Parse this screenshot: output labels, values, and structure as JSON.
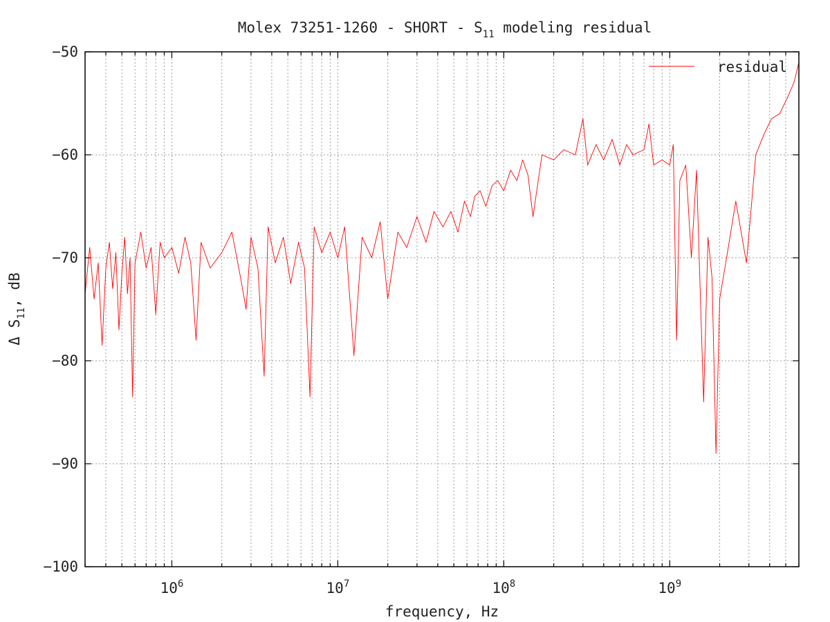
{
  "chart_data": {
    "type": "line",
    "title": "Molex 73251-1260 - SHORT - S11 modeling residual",
    "title_parts": {
      "prefix": "Molex 73251-1260 - SHORT - S",
      "subscript": "11",
      "suffix": " modeling residual"
    },
    "xlabel": "frequency, Hz",
    "ylabel": "Δ S11, dB",
    "ylabel_parts": {
      "prefix": "Δ S",
      "subscript": "11",
      "suffix": ", dB"
    },
    "x_scale": "log",
    "xlim": [
      300000,
      6000000000
    ],
    "ylim": [
      -100,
      -50
    ],
    "x_ticks": [
      {
        "value": 1000000,
        "base": "10",
        "exp": "6"
      },
      {
        "value": 10000000,
        "base": "10",
        "exp": "7"
      },
      {
        "value": 100000000,
        "base": "10",
        "exp": "8"
      },
      {
        "value": 1000000000,
        "base": "10",
        "exp": "9"
      }
    ],
    "y_ticks": [
      {
        "value": -50,
        "label": "−50"
      },
      {
        "value": -60,
        "label": "−60"
      },
      {
        "value": -70,
        "label": "−70"
      },
      {
        "value": -80,
        "label": "−80"
      },
      {
        "value": -90,
        "label": "−90"
      },
      {
        "value": -100,
        "label": "−100"
      }
    ],
    "grid": true,
    "legend": {
      "position": "top-right",
      "entries": [
        "residual"
      ]
    },
    "series": [
      {
        "name": "residual",
        "color": "#ff0000",
        "points": [
          [
            300000,
            -73.5
          ],
          [
            320000,
            -69
          ],
          [
            340000,
            -74
          ],
          [
            360000,
            -70.5
          ],
          [
            380000,
            -78.5
          ],
          [
            400000,
            -71
          ],
          [
            420000,
            -68.5
          ],
          [
            440000,
            -73
          ],
          [
            460000,
            -69.5
          ],
          [
            480000,
            -77
          ],
          [
            500000,
            -71.5
          ],
          [
            520000,
            -68
          ],
          [
            540000,
            -73.5
          ],
          [
            560000,
            -70
          ],
          [
            580000,
            -83.5
          ],
          [
            600000,
            -70.5
          ],
          [
            650000,
            -67.5
          ],
          [
            700000,
            -71
          ],
          [
            750000,
            -69
          ],
          [
            800000,
            -75.5
          ],
          [
            850000,
            -68.5
          ],
          [
            900000,
            -70
          ],
          [
            1000000,
            -69
          ],
          [
            1100000,
            -71.5
          ],
          [
            1200000,
            -68
          ],
          [
            1300000,
            -70.5
          ],
          [
            1400000,
            -78
          ],
          [
            1500000,
            -68.5
          ],
          [
            1700000,
            -71
          ],
          [
            2000000,
            -69.5
          ],
          [
            2300000,
            -67.5
          ],
          [
            2600000,
            -72
          ],
          [
            2800000,
            -75
          ],
          [
            3000000,
            -68
          ],
          [
            3300000,
            -71
          ],
          [
            3600000,
            -81.5
          ],
          [
            3800000,
            -67
          ],
          [
            4200000,
            -70.5
          ],
          [
            4700000,
            -68
          ],
          [
            5200000,
            -72.5
          ],
          [
            5800000,
            -68.5
          ],
          [
            6300000,
            -71
          ],
          [
            6800000,
            -83.5
          ],
          [
            7200000,
            -67
          ],
          [
            8000000,
            -69.5
          ],
          [
            9000000,
            -67.5
          ],
          [
            10000000,
            -70
          ],
          [
            11000000,
            -67
          ],
          [
            12500000,
            -79.5
          ],
          [
            14000000,
            -68
          ],
          [
            16000000,
            -70
          ],
          [
            18000000,
            -66.5
          ],
          [
            20000000,
            -74
          ],
          [
            23000000,
            -67.5
          ],
          [
            26000000,
            -69
          ],
          [
            30000000,
            -66
          ],
          [
            34000000,
            -68.5
          ],
          [
            38000000,
            -65.5
          ],
          [
            43000000,
            -67
          ],
          [
            48000000,
            -65.5
          ],
          [
            53000000,
            -67.5
          ],
          [
            58000000,
            -64.5
          ],
          [
            63000000,
            -66
          ],
          [
            67000000,
            -64
          ],
          [
            72000000,
            -63.5
          ],
          [
            78000000,
            -65
          ],
          [
            85000000,
            -63
          ],
          [
            92000000,
            -62.5
          ],
          [
            100000000,
            -63.5
          ],
          [
            110000000,
            -61.5
          ],
          [
            120000000,
            -62.5
          ],
          [
            130000000,
            -60.5
          ],
          [
            140000000,
            -62
          ],
          [
            150000000,
            -66
          ],
          [
            170000000,
            -60
          ],
          [
            200000000,
            -60.5
          ],
          [
            230000000,
            -59.5
          ],
          [
            270000000,
            -60
          ],
          [
            300000000,
            -56.5
          ],
          [
            320000000,
            -61
          ],
          [
            360000000,
            -59
          ],
          [
            400000000,
            -60.5
          ],
          [
            450000000,
            -58.5
          ],
          [
            500000000,
            -61
          ],
          [
            550000000,
            -59
          ],
          [
            600000000,
            -60
          ],
          [
            700000000,
            -59.5
          ],
          [
            750000000,
            -57
          ],
          [
            800000000,
            -61
          ],
          [
            900000000,
            -60.5
          ],
          [
            1000000000,
            -61
          ],
          [
            1050000000,
            -59
          ],
          [
            1100000000,
            -78
          ],
          [
            1150000000,
            -62.5
          ],
          [
            1250000000,
            -61
          ],
          [
            1350000000,
            -70
          ],
          [
            1450000000,
            -61.5
          ],
          [
            1600000000,
            -84
          ],
          [
            1700000000,
            -68
          ],
          [
            1800000000,
            -72
          ],
          [
            1900000000,
            -89
          ],
          [
            2000000000,
            -74
          ],
          [
            2200000000,
            -70
          ],
          [
            2500000000,
            -64.5
          ],
          [
            2900000000,
            -70.5
          ],
          [
            3300000000,
            -60
          ],
          [
            3700000000,
            -58
          ],
          [
            4100000000,
            -56.5
          ],
          [
            4600000000,
            -56
          ],
          [
            5100000000,
            -54.5
          ],
          [
            5600000000,
            -53
          ],
          [
            6000000000,
            -51
          ]
        ]
      }
    ]
  }
}
